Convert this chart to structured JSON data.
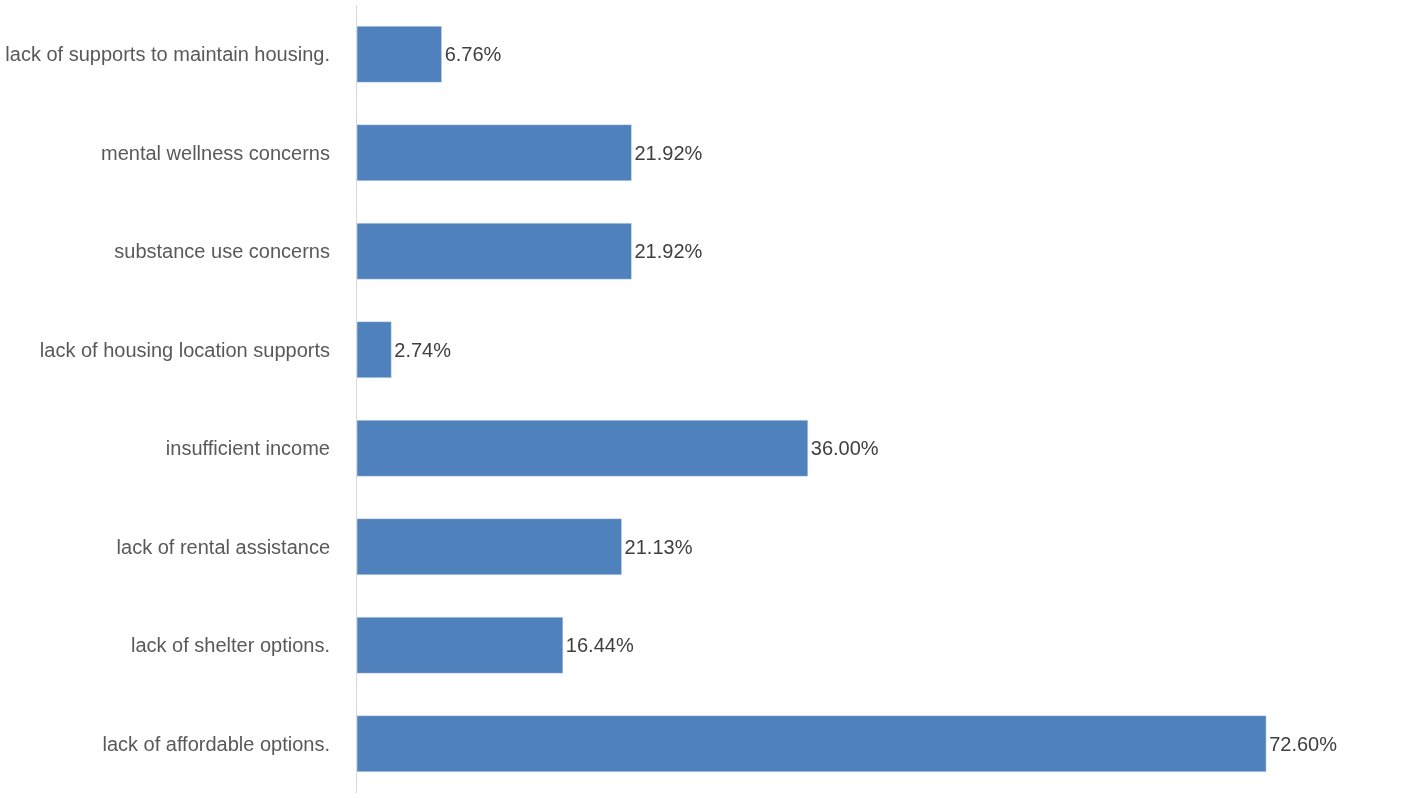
{
  "chart_data": {
    "type": "bar",
    "orientation": "horizontal",
    "categories": [
      "lack of supports to maintain housing.",
      "mental wellness concerns",
      "substance use concerns",
      "lack of housing location supports",
      "insufficient income",
      "lack of rental assistance",
      "lack of shelter options.",
      "lack of affordable options."
    ],
    "values": [
      6.76,
      21.92,
      21.92,
      2.74,
      36.0,
      21.13,
      16.44,
      72.6
    ],
    "value_labels": [
      "6.76%",
      "21.92%",
      "21.92%",
      "2.74%",
      "36.00%",
      "21.13%",
      "16.44%",
      "72.60%"
    ],
    "color": "#4f81bd",
    "legend": false,
    "tick_labels": "y"
  }
}
